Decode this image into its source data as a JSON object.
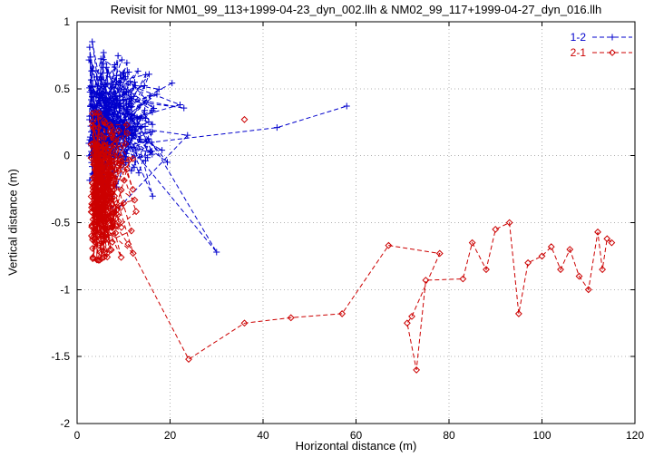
{
  "chart_data": {
    "type": "scatter",
    "title": "Revisit for NM01_99_113+1999-04-23_dyn_002.llh & NM02_99_117+1999-04-27_dyn_016.llh",
    "xlabel": "Horizontal distance (m)",
    "ylabel": "Vertical distance (m)",
    "xlim": [
      0,
      120
    ],
    "ylim": [
      -2,
      1
    ],
    "xticks": [
      0,
      20,
      40,
      60,
      80,
      100,
      120
    ],
    "yticks": [
      -2,
      -1.5,
      -1,
      -0.5,
      0,
      0.5,
      1
    ],
    "grid": true,
    "grid_color": "#b0b0b0",
    "border_color": "#000000",
    "background": "#ffffff",
    "legend_position": "top-right",
    "legend": [
      "1-2",
      "2-1"
    ],
    "series": [
      {
        "name": "1-2",
        "color": "#0000cc",
        "marker": "plus",
        "line": "dashed",
        "segments": [
          {
            "cluster": {
              "seed": 7,
              "n": 330,
              "x0": 2.5,
              "sx": 6.5,
              "cy": 0.27,
              "sy": 0.24,
              "xmin": 2.5,
              "xmax": 35,
              "ymin": -0.42,
              "ymax": 0.88
            }
          },
          {
            "points": [
              [
                30,
                -0.72
              ],
              [
                16,
                0.1
              ],
              [
                43,
                0.21
              ],
              [
                58,
                0.37
              ]
            ]
          }
        ]
      },
      {
        "name": "2-1",
        "color": "#cc0000",
        "marker": "diamond",
        "line": "dashed",
        "segments": [
          {
            "cluster": {
              "seed": 13,
              "n": 260,
              "x0": 3.0,
              "sx": 3.5,
              "cy": -0.28,
              "sy": 0.26,
              "xmin": 3,
              "xmax": 16,
              "ymin": -0.78,
              "ymax": 0.32
            }
          },
          {
            "points": [
              [
                11,
                -0.66
              ],
              [
                24,
                -1.52
              ],
              [
                36,
                -1.25
              ],
              [
                46,
                -1.21
              ],
              [
                57,
                -1.18
              ],
              [
                67,
                -0.67
              ],
              [
                78,
                -0.73
              ],
              [
                72,
                -1.2
              ],
              [
                71,
                -1.25
              ],
              [
                73,
                -1.6
              ],
              [
                75,
                -0.93
              ],
              [
                83,
                -0.92
              ],
              [
                85,
                -0.65
              ],
              [
                88,
                -0.85
              ],
              [
                90,
                -0.55
              ],
              [
                93,
                -0.5
              ],
              [
                95,
                -1.18
              ],
              [
                97,
                -0.8
              ],
              [
                100,
                -0.75
              ],
              [
                102,
                -0.68
              ],
              [
                104,
                -0.85
              ],
              [
                106,
                -0.7
              ],
              [
                108,
                -0.9
              ],
              [
                110,
                -1.0
              ],
              [
                112,
                -0.57
              ],
              [
                113,
                -0.85
              ],
              [
                114,
                -0.62
              ],
              [
                115,
                -0.65
              ]
            ]
          },
          {
            "gap": true,
            "points": [
              [
                36,
                0.27
              ]
            ]
          }
        ]
      }
    ]
  }
}
